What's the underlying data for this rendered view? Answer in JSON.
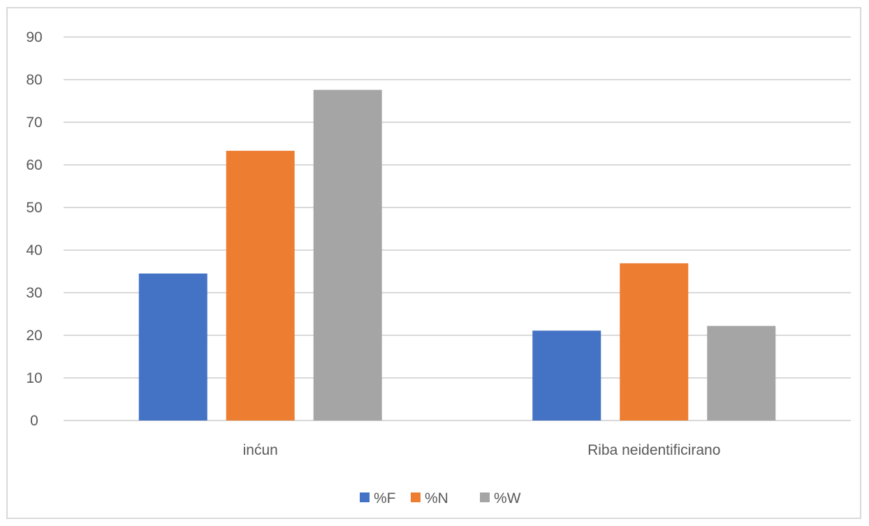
{
  "chart_data": {
    "type": "bar",
    "title": "",
    "xlabel": "",
    "ylabel": "",
    "categories": [
      "inćun",
      "Riba neidentificirano"
    ],
    "series": [
      {
        "name": "%F",
        "values": [
          34.5,
          21.1
        ],
        "color": "#4472c4"
      },
      {
        "name": "%N",
        "values": [
          63.3,
          36.9
        ],
        "color": "#ed7d31"
      },
      {
        "name": "%W",
        "values": [
          77.6,
          22.2
        ],
        "color": "#a5a5a5"
      }
    ],
    "ylim": [
      0,
      90
    ],
    "yticks": [
      0,
      10,
      20,
      30,
      40,
      50,
      60,
      70,
      80,
      90
    ],
    "grid": true,
    "legend_position": "bottom",
    "colors": {
      "gridline": "#d9d9d9",
      "axis_line": "#d9d9d9",
      "text": "#595959",
      "border": "#d9d9d9"
    }
  }
}
